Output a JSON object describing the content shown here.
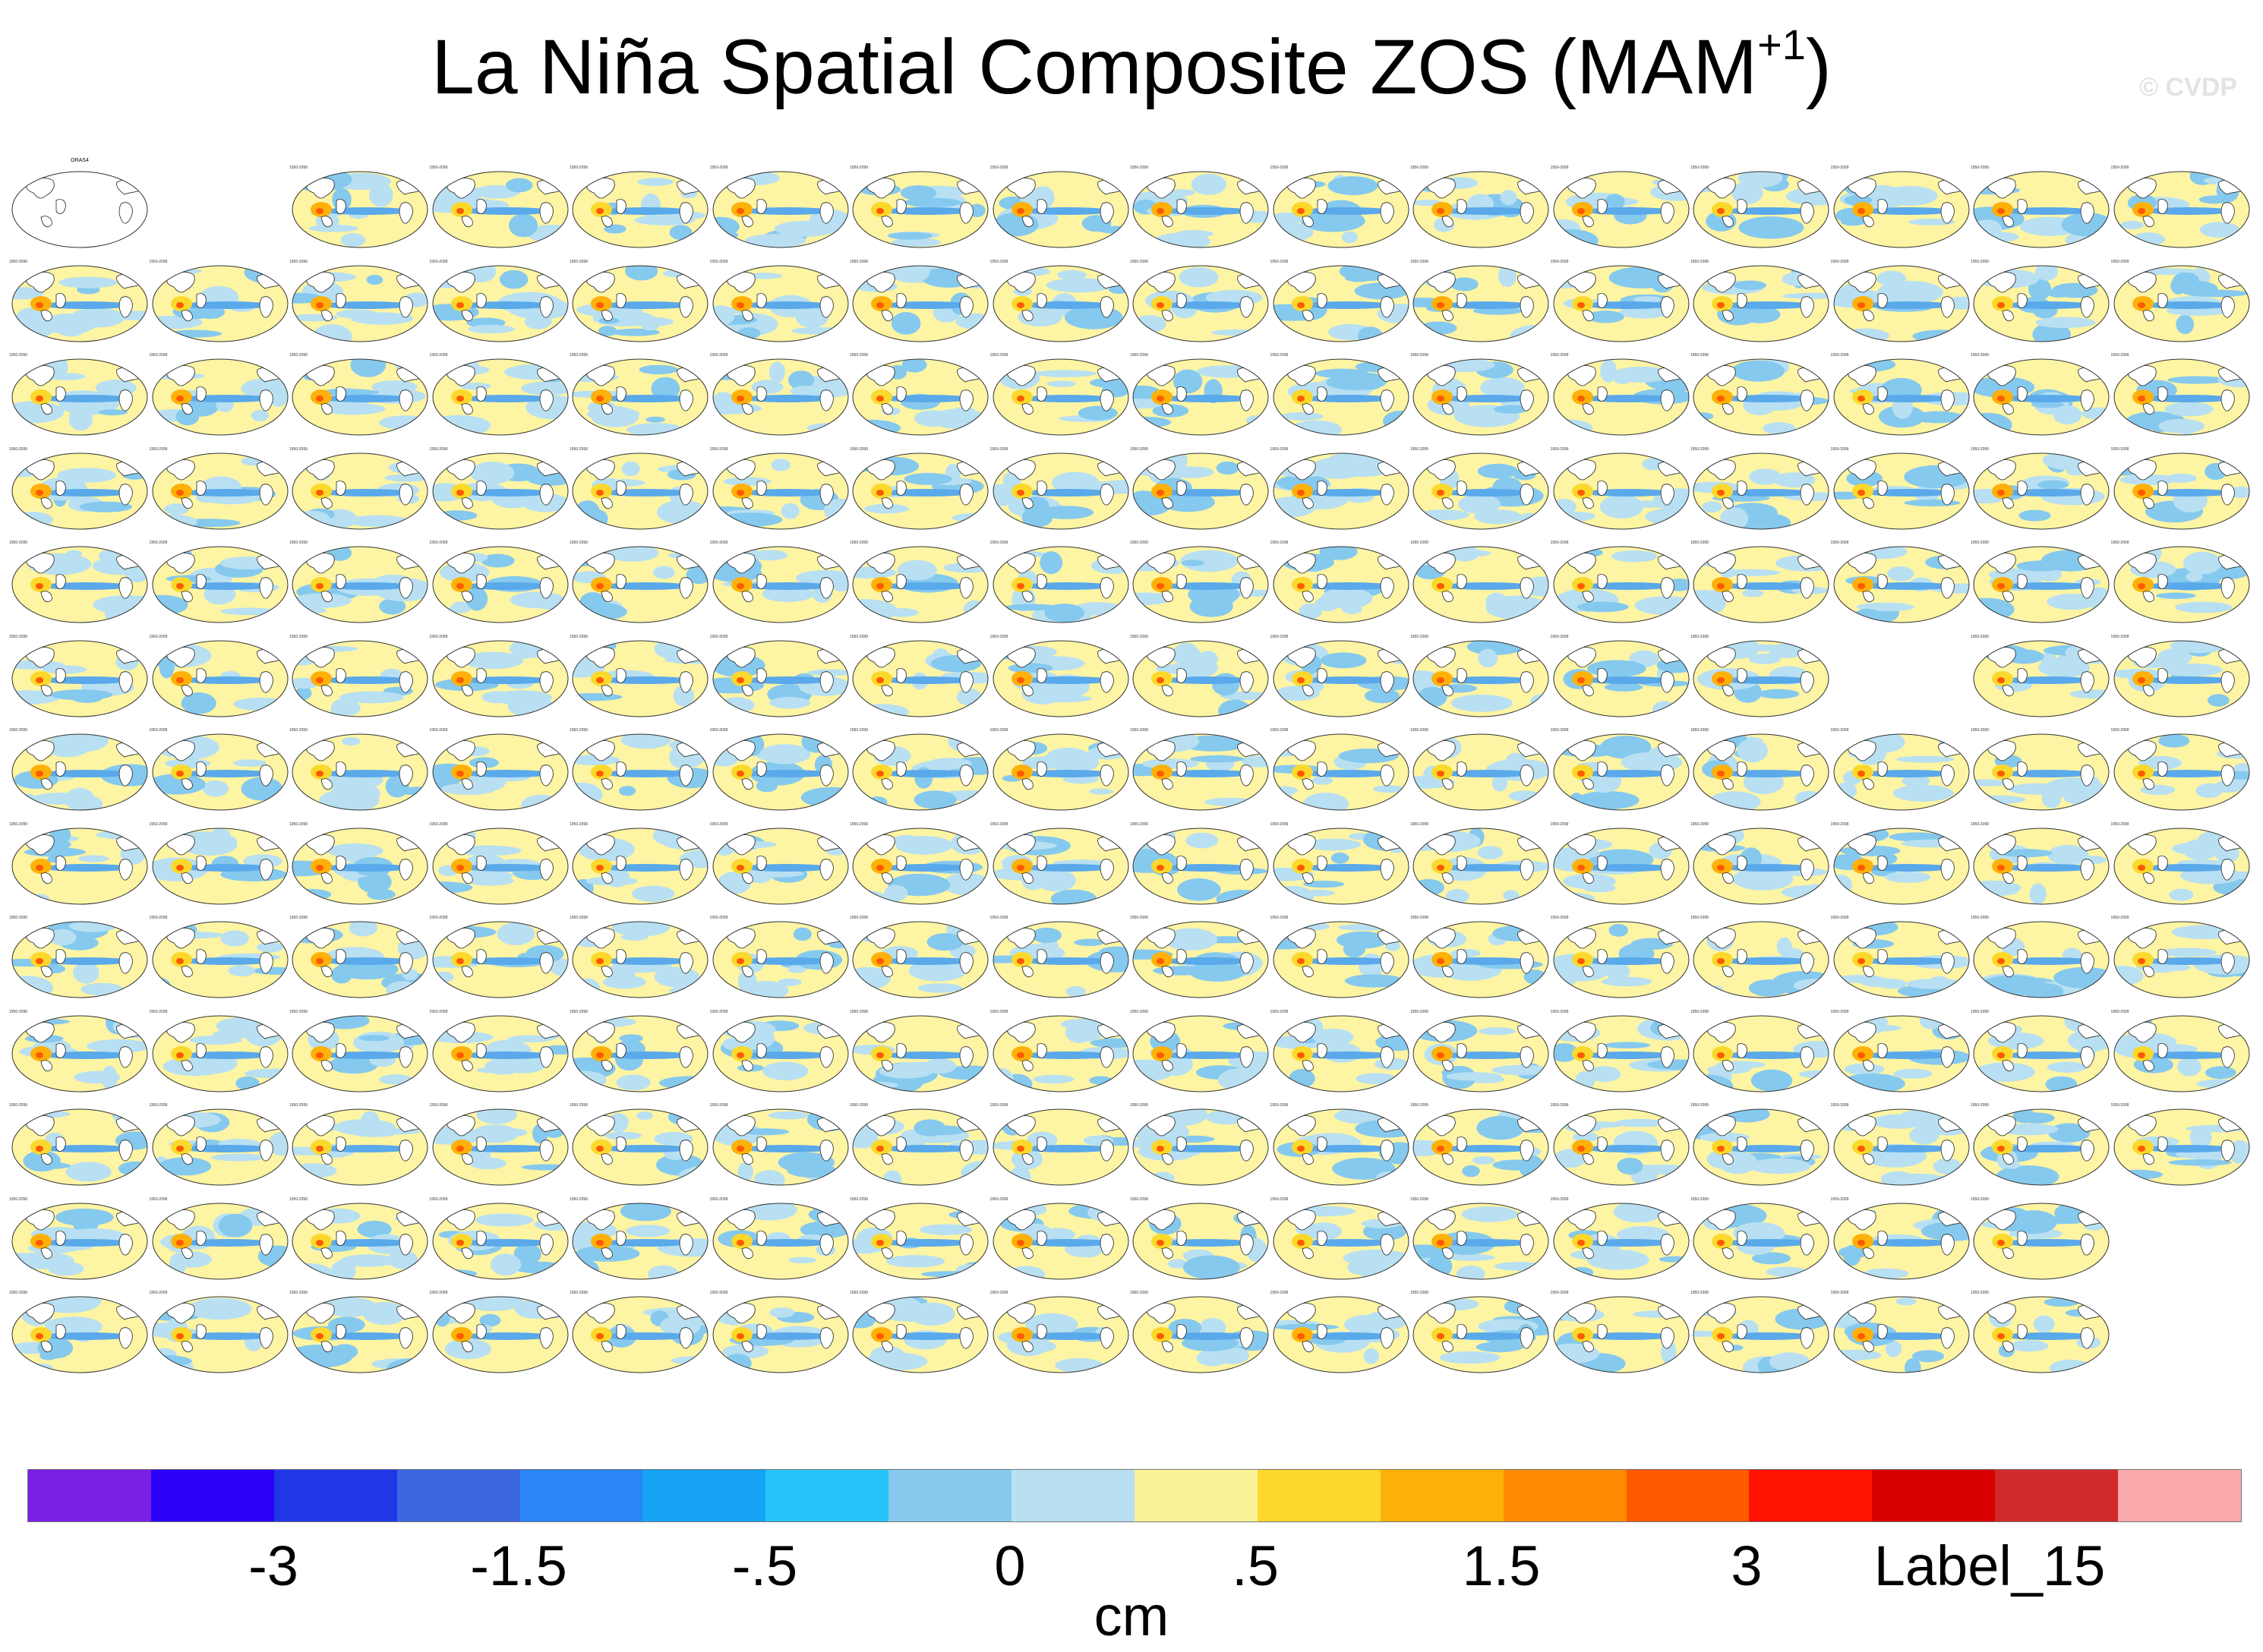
{
  "title": {
    "main": "La Niña Spatial Composite ZOS (MAM",
    "sup": "+1",
    "close": ")"
  },
  "watermark": "© CVDP",
  "units": "cm",
  "colorbar": {
    "colors": [
      "#7b1fe6",
      "#2c00f6",
      "#2136e6",
      "#3a66e0",
      "#2a86f6",
      "#16a3f5",
      "#25c3f7",
      "#86c9ee",
      "#b8e0f2",
      "#fbf398",
      "#fbd82c",
      "#fdb10a",
      "#fd8a00",
      "#fd5a00",
      "#fe1200",
      "#d90000",
      "#d22a2a",
      "#fca9ab"
    ],
    "labels": [
      "-3",
      "-1.5",
      "-.5",
      "0",
      ".5",
      "1.5",
      "3",
      "Label_15"
    ]
  },
  "grid": {
    "columns": 16,
    "observation_title": "ORAS4",
    "panel_years": "1950-2099"
  }
}
